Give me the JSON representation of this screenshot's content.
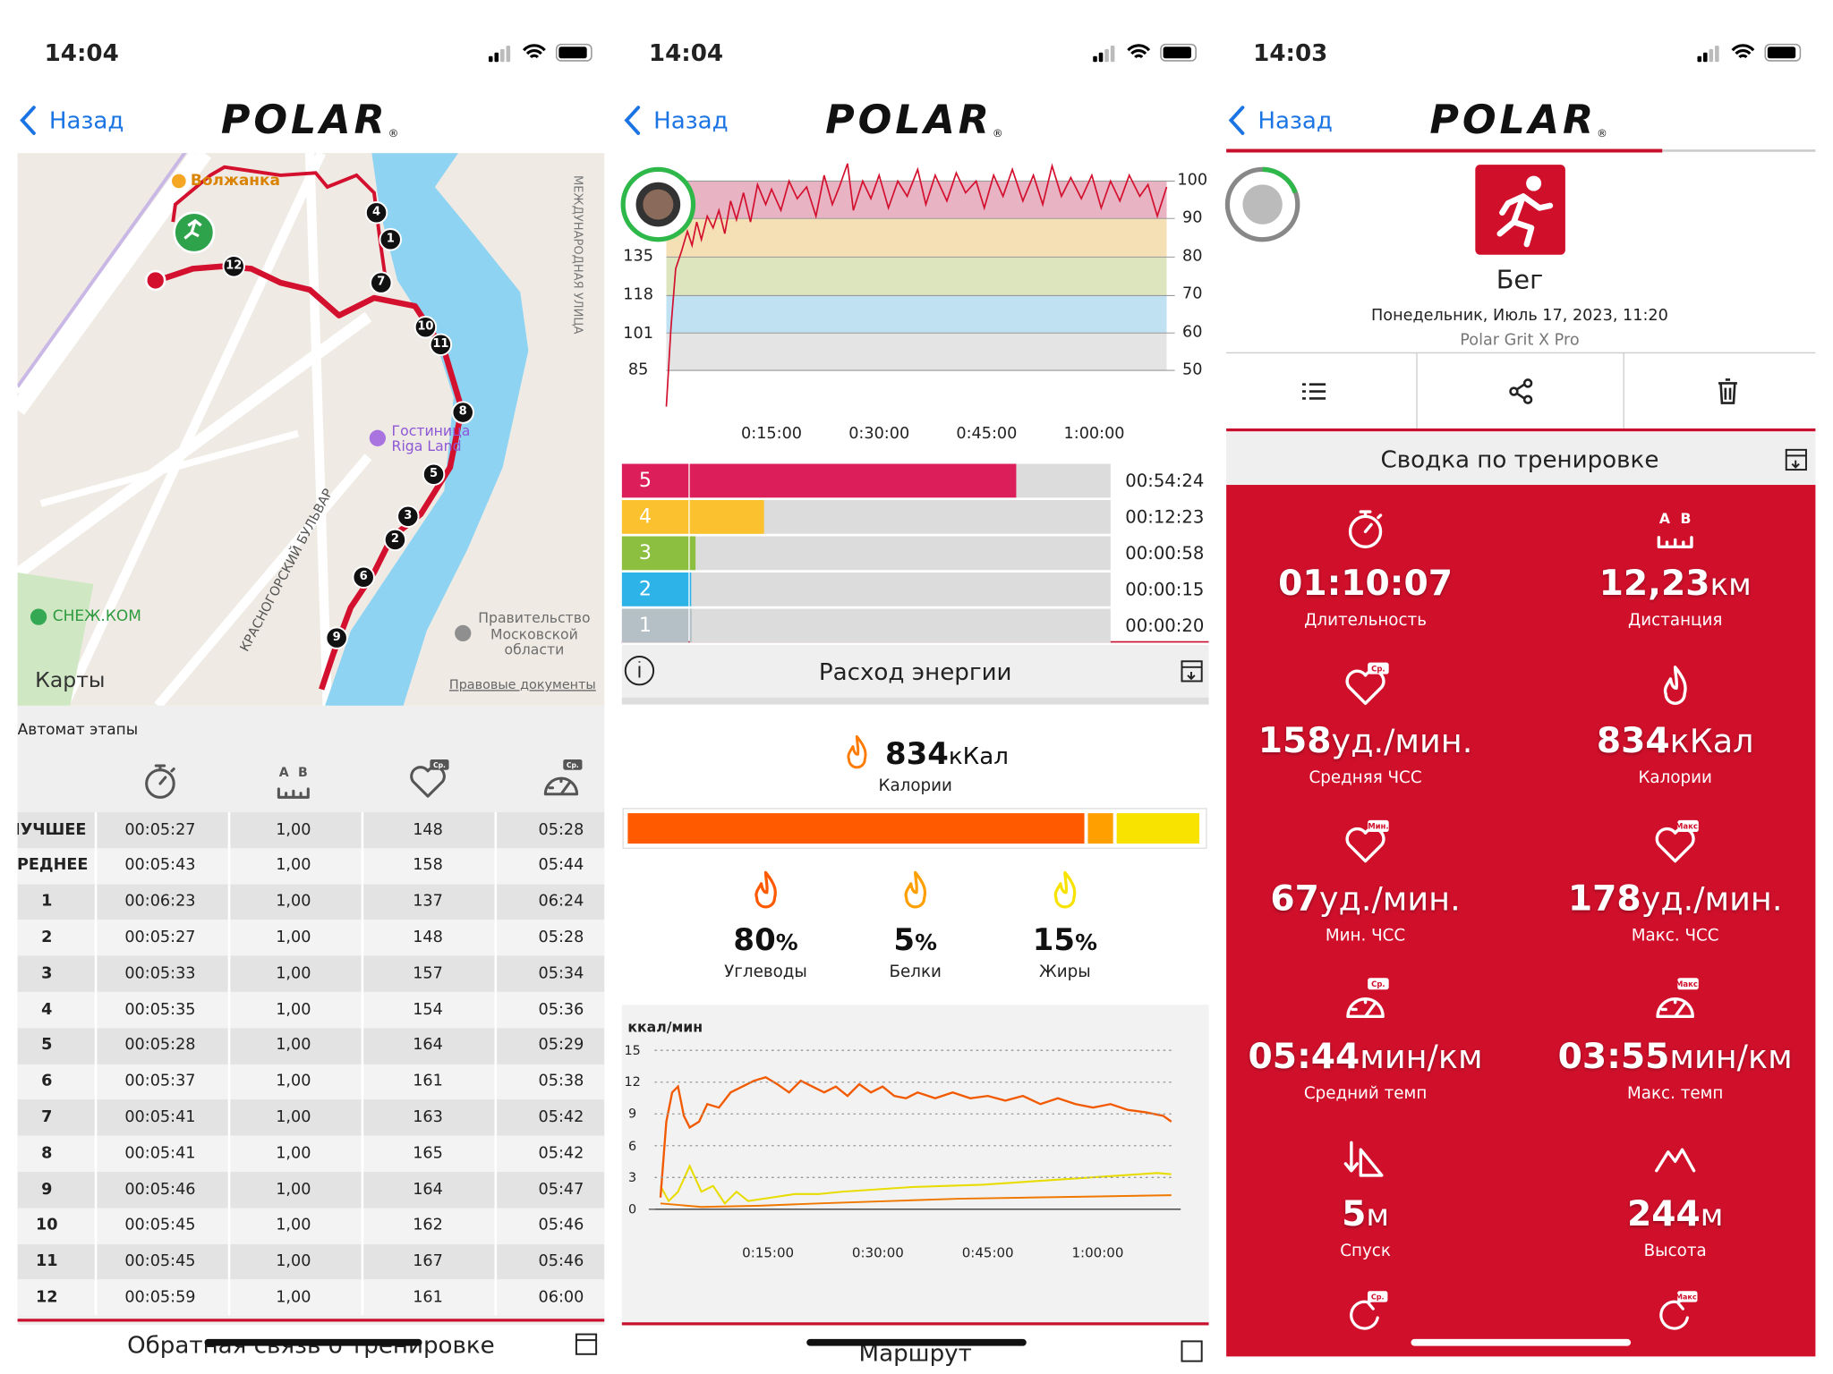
{
  "status_bar": {
    "times": [
      "14:04",
      "14:04",
      "14:03"
    ]
  },
  "nav": {
    "back": "Назад",
    "logo": "POLAR",
    "logo_mark": "®"
  },
  "badges": {
    "avg": "Ср.",
    "min": "Мин.",
    "max": "Макс.",
    "a": "A",
    "b": "B"
  },
  "map": {
    "labels": {
      "volzhanka": "Волжанка",
      "hotel": [
        "Гостиница",
        "Riga Land"
      ],
      "snezh": "СНЕЖ.КОМ",
      "gov": [
        "Правительство",
        "Московской",
        "области"
      ],
      "street1": "КРАСНОГОРСКИЙ БУЛЬВАР",
      "street2": "МЕЖДУНАРОДНАЯ УЛИЦА",
      "maps": "Карты",
      "legal": "Правовые документы"
    },
    "markers": [
      "1",
      "2",
      "3",
      "4",
      "5",
      "6",
      "7",
      "8",
      "9",
      "10",
      "11",
      "12"
    ]
  },
  "laps": {
    "title": "Автомат этапы",
    "rows": [
      [
        "ЛУЧШЕЕ",
        "00:05:27",
        "1,00",
        148,
        "05:28"
      ],
      [
        "СРЕДНЕЕ",
        "00:05:43",
        "1,00",
        158,
        "05:44"
      ],
      [
        1,
        "00:06:23",
        "1,00",
        137,
        "06:24"
      ],
      [
        2,
        "00:05:27",
        "1,00",
        148,
        "05:28"
      ],
      [
        3,
        "00:05:33",
        "1,00",
        157,
        "05:34"
      ],
      [
        4,
        "00:05:35",
        "1,00",
        154,
        "05:36"
      ],
      [
        5,
        "00:05:28",
        "1,00",
        164,
        "05:29"
      ],
      [
        6,
        "00:05:37",
        "1,00",
        161,
        "05:38"
      ],
      [
        7,
        "00:05:41",
        "1,00",
        163,
        "05:42"
      ],
      [
        8,
        "00:05:41",
        "1,00",
        165,
        "05:42"
      ],
      [
        9,
        "00:05:46",
        "1,00",
        164,
        "05:47"
      ],
      [
        10,
        "00:05:45",
        "1,00",
        162,
        "05:46"
      ],
      [
        11,
        "00:05:45",
        "1,00",
        167,
        "05:46"
      ],
      [
        12,
        "00:05:59",
        "1,00",
        161,
        "06:00"
      ]
    ]
  },
  "sections": {
    "feedback": "Обратная связь о тренировке",
    "energy": "Расход энергии",
    "route": "Маршрут",
    "summary": "Сводка по тренировке"
  },
  "hr_chart": {
    "yticks_left": [
      85,
      101,
      118,
      135
    ],
    "yticks_right": [
      50,
      60,
      70,
      80,
      90,
      100
    ],
    "xticks": [
      "0:15:00",
      "0:30:00",
      "0:45:00",
      "1:00:00"
    ]
  },
  "zones": [
    {
      "zone": 5,
      "color": "#dc1e5b",
      "time": "00:54:24"
    },
    {
      "zone": 4,
      "color": "#fbc12e",
      "time": "00:12:23"
    },
    {
      "zone": 3,
      "color": "#8cbf3f",
      "time": "00:00:58"
    },
    {
      "zone": 2,
      "color": "#2eb3e8",
      "time": "00:00:15"
    },
    {
      "zone": 1,
      "color": "#b4c0c6",
      "time": "00:00:20"
    }
  ],
  "energy": {
    "calories": 834,
    "unit": "кКал",
    "label": "Калории",
    "percent_sign": "%",
    "split": [
      {
        "name": "Углеводы",
        "value": 80,
        "color": "#ff5a00"
      },
      {
        "name": "Белки",
        "value": 5,
        "color": "#ffa000"
      },
      {
        "name": "Жиры",
        "value": 15,
        "color": "#f7e200"
      }
    ]
  },
  "energy_chart": {
    "y_label": "ккал/мин",
    "ylim": [
      0,
      15
    ],
    "yticks": [
      0,
      3,
      6,
      9,
      12,
      15
    ],
    "xticks": [
      "0:15:00",
      "0:30:00",
      "0:45:00",
      "1:00:00"
    ]
  },
  "workout": {
    "sport": "Бег",
    "date": "Понедельник, Июль 17, 2023, 11:20",
    "device": "Polar Grit X Pro",
    "stats": [
      {
        "value": "01:10:07",
        "label": "Длительность"
      },
      {
        "value": "12,23",
        "unit": "км",
        "label": "Дистанция"
      },
      {
        "value": 158,
        "unit": "уд./мин.",
        "label": "Средняя ЧСС"
      },
      {
        "value": 834,
        "unit": "кКал",
        "label": "Калории"
      },
      {
        "value": 67,
        "unit": "уд./мин.",
        "label": "Мин. ЧСС"
      },
      {
        "value": 178,
        "unit": "уд./мин.",
        "label": "Макс. ЧСС"
      },
      {
        "value": "05:44",
        "unit": "мин/км",
        "label": "Средний темп"
      },
      {
        "value": "03:55",
        "unit": "мин/км",
        "label": "Макс. темп"
      },
      {
        "value": 5,
        "unit": "м",
        "label": "Спуск"
      },
      {
        "value": 244,
        "unit": "м",
        "label": "Высота"
      }
    ]
  }
}
